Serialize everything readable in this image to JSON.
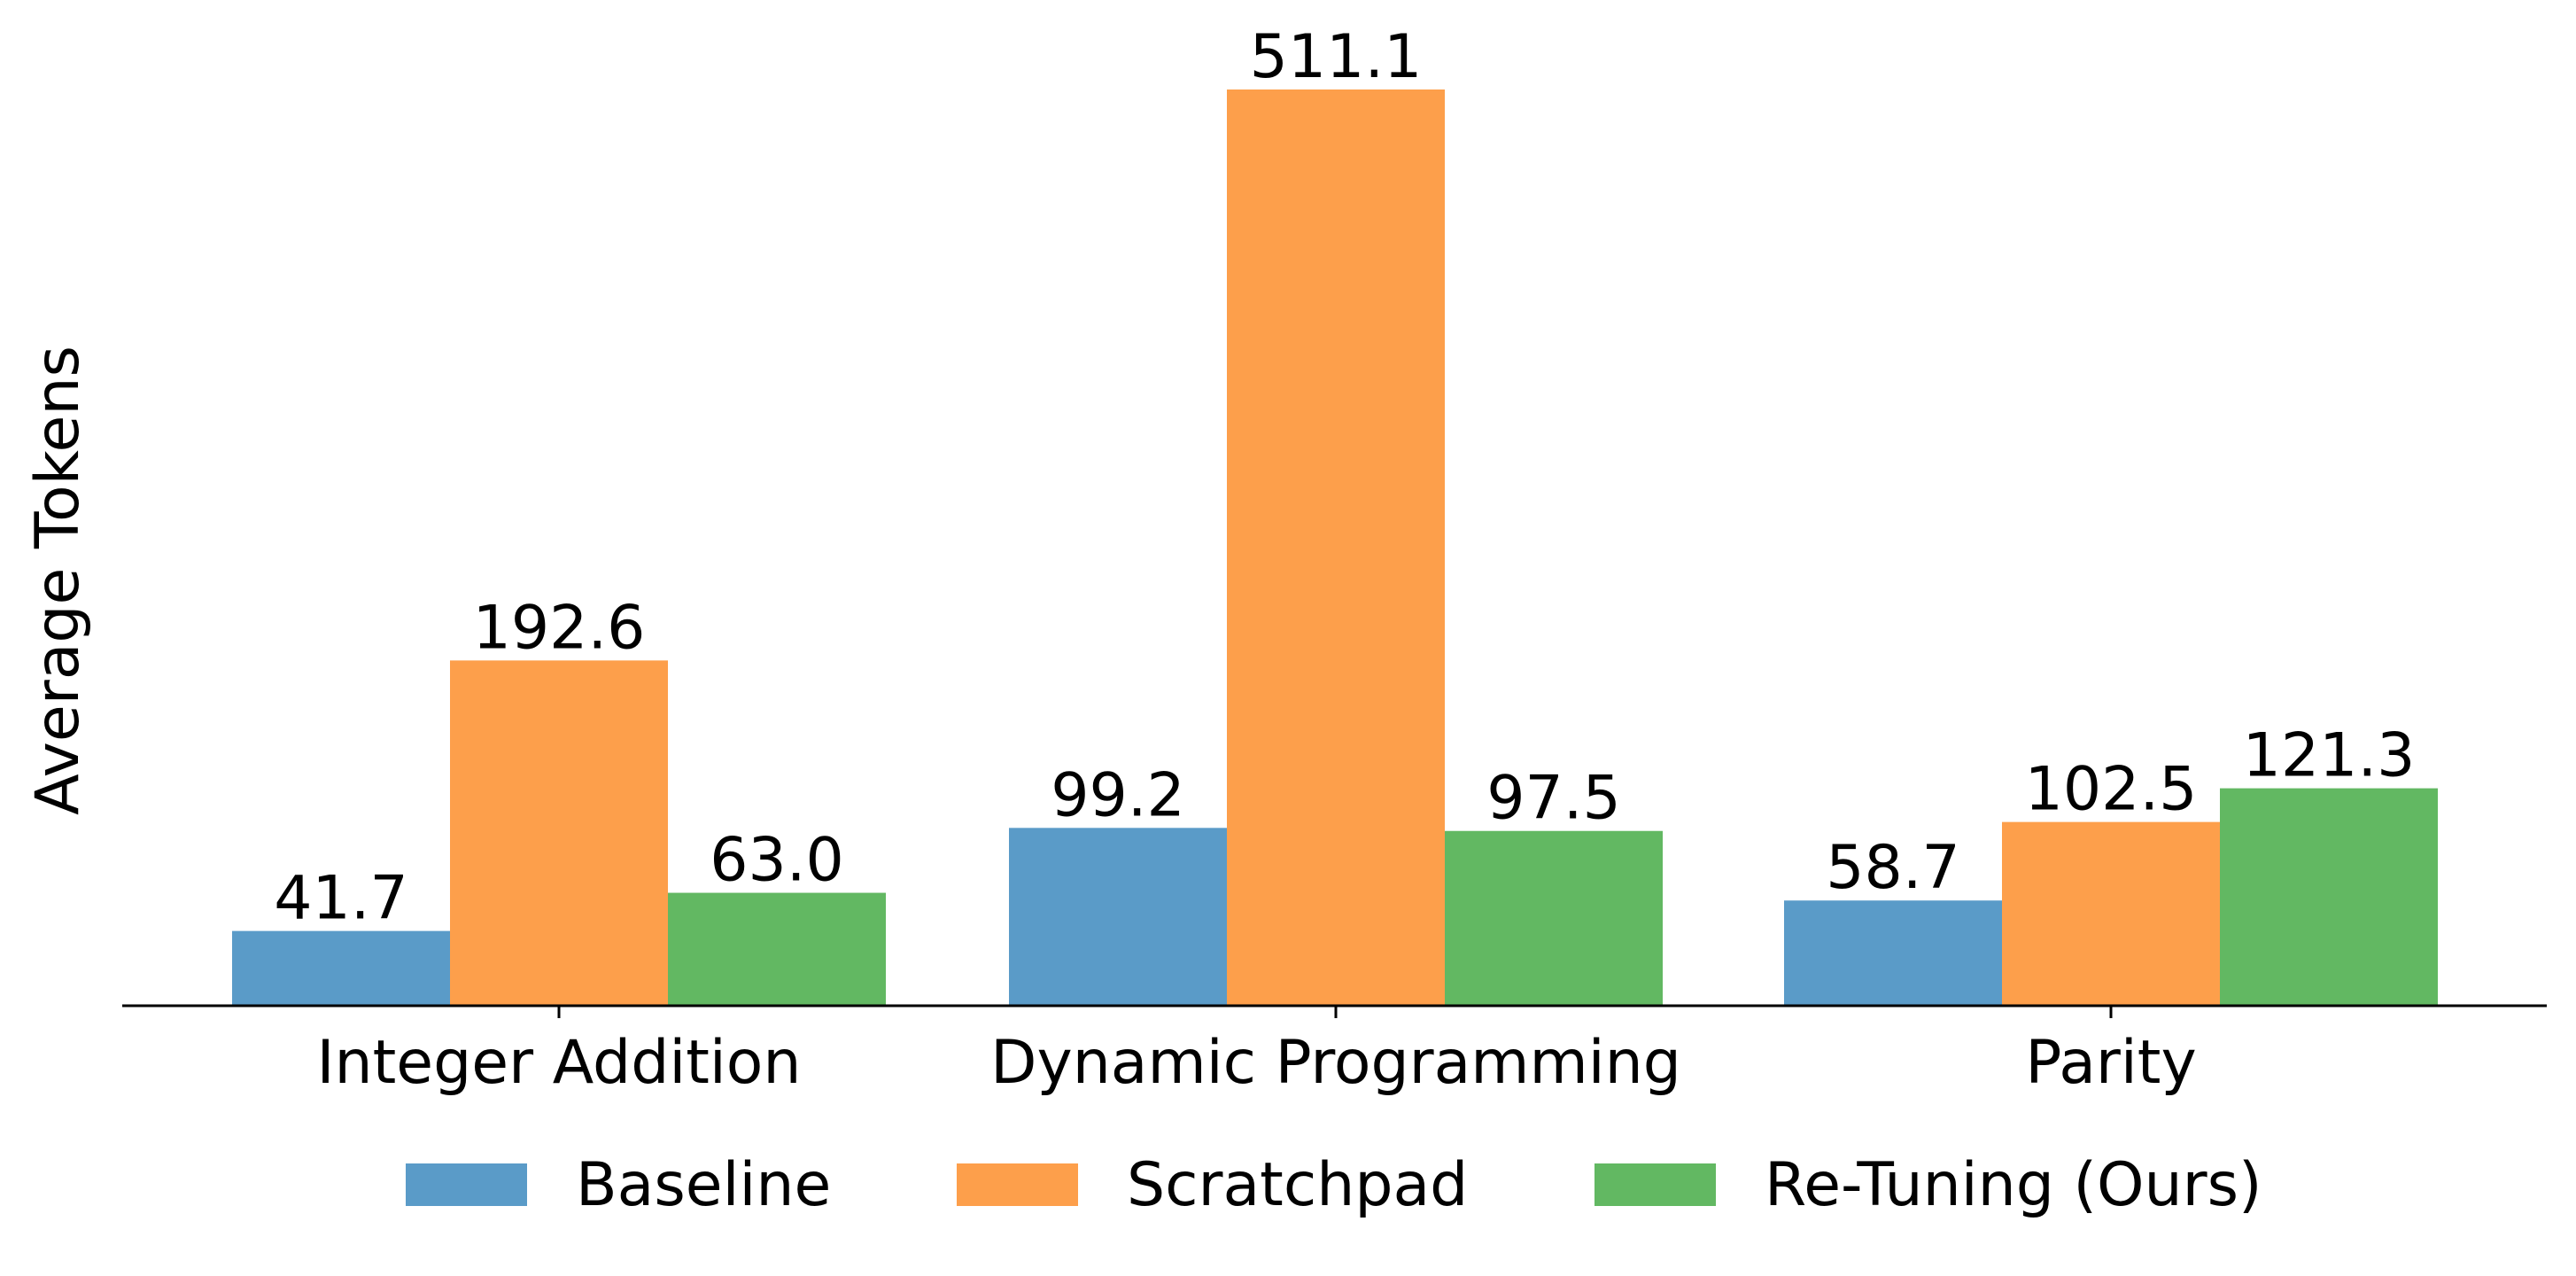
{
  "chart_data": {
    "type": "bar",
    "title": "",
    "xlabel": "",
    "ylabel": "Average Tokens",
    "categories": [
      "Integer Addition",
      "Dynamic Programming",
      "Parity"
    ],
    "series": [
      {
        "name": "Baseline",
        "values": [
          41.7,
          99.2,
          58.7
        ],
        "color": "#5a9bc8",
        "labels": [
          "41.7",
          "99.2",
          "58.7"
        ]
      },
      {
        "name": "Scratchpad",
        "values": [
          192.6,
          511.1,
          102.5
        ],
        "color": "#fd9f4b",
        "labels": [
          "192.6",
          "511.1",
          "102.5"
        ]
      },
      {
        "name": "Re-Tuning (Ours)",
        "values": [
          63.0,
          97.5,
          121.3
        ],
        "color": "#62b862",
        "labels": [
          "63.0",
          "97.5",
          "121.3"
        ]
      }
    ],
    "ylim": [
      0,
      511.1
    ],
    "y_ticks_visible": false,
    "grid": false,
    "legend_position": "bottom-center"
  }
}
